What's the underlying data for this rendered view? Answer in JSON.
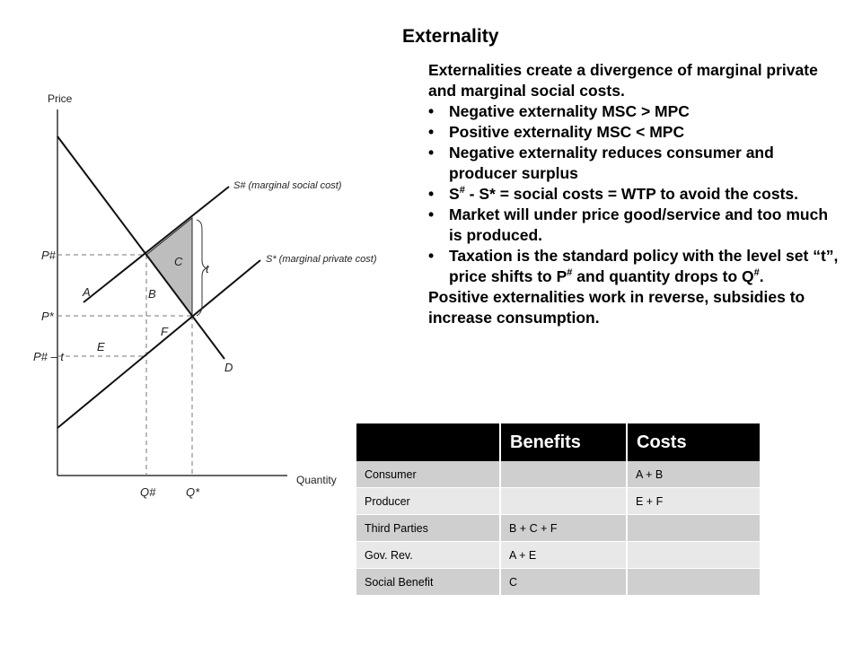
{
  "title": "Externality",
  "intro": "Externalities create a divergence of marginal private and marginal social costs.",
  "bullets": [
    "Negative externality  MSC > MPC",
    "Positive externality MSC < MPC",
    "Negative externality reduces consumer and producer surplus"
  ],
  "bullet4": {
    "s1": "S",
    "sup1": "#",
    "rest": " - S* = social costs = WTP to avoid the costs."
  },
  "bullet5": "Market will under price good/service and too much is produced.",
  "bullet6": {
    "pre": "Taxation is the standard policy with the level set “t”, price shifts to P",
    "sup1": "#",
    "mid": " and quantity drops to Q",
    "sup2": "#",
    "end": "."
  },
  "outro": "Positive externalities work in reverse, subsidies to increase consumption.",
  "diagram": {
    "y_axis": "Price",
    "x_axis": "Quantity",
    "social_cost": "S# (marginal social cost)",
    "private_cost": "S* (marginal private cost)",
    "demand": "D",
    "p_hash": "P#",
    "p_star": "P*",
    "p_hash_minus_t": "P# – t",
    "q_hash": "Q#",
    "q_star": "Q*",
    "tax": "t",
    "areas": [
      "A",
      "B",
      "C",
      "E",
      "F"
    ],
    "shaded_fill": "#bdbdbd"
  },
  "table": {
    "headers": [
      "",
      "Benefits",
      "Costs"
    ],
    "rows": [
      [
        "Consumer",
        "",
        "A + B"
      ],
      [
        "Producer",
        "",
        "E + F"
      ],
      [
        "Third Parties",
        "B + C + F",
        ""
      ],
      [
        "Gov. Rev.",
        "A + E",
        ""
      ],
      [
        "Social Benefit",
        "C",
        ""
      ]
    ],
    "header_bg": "#000000",
    "row_colors": [
      "#cfcfcf",
      "#e8e8e8"
    ]
  }
}
